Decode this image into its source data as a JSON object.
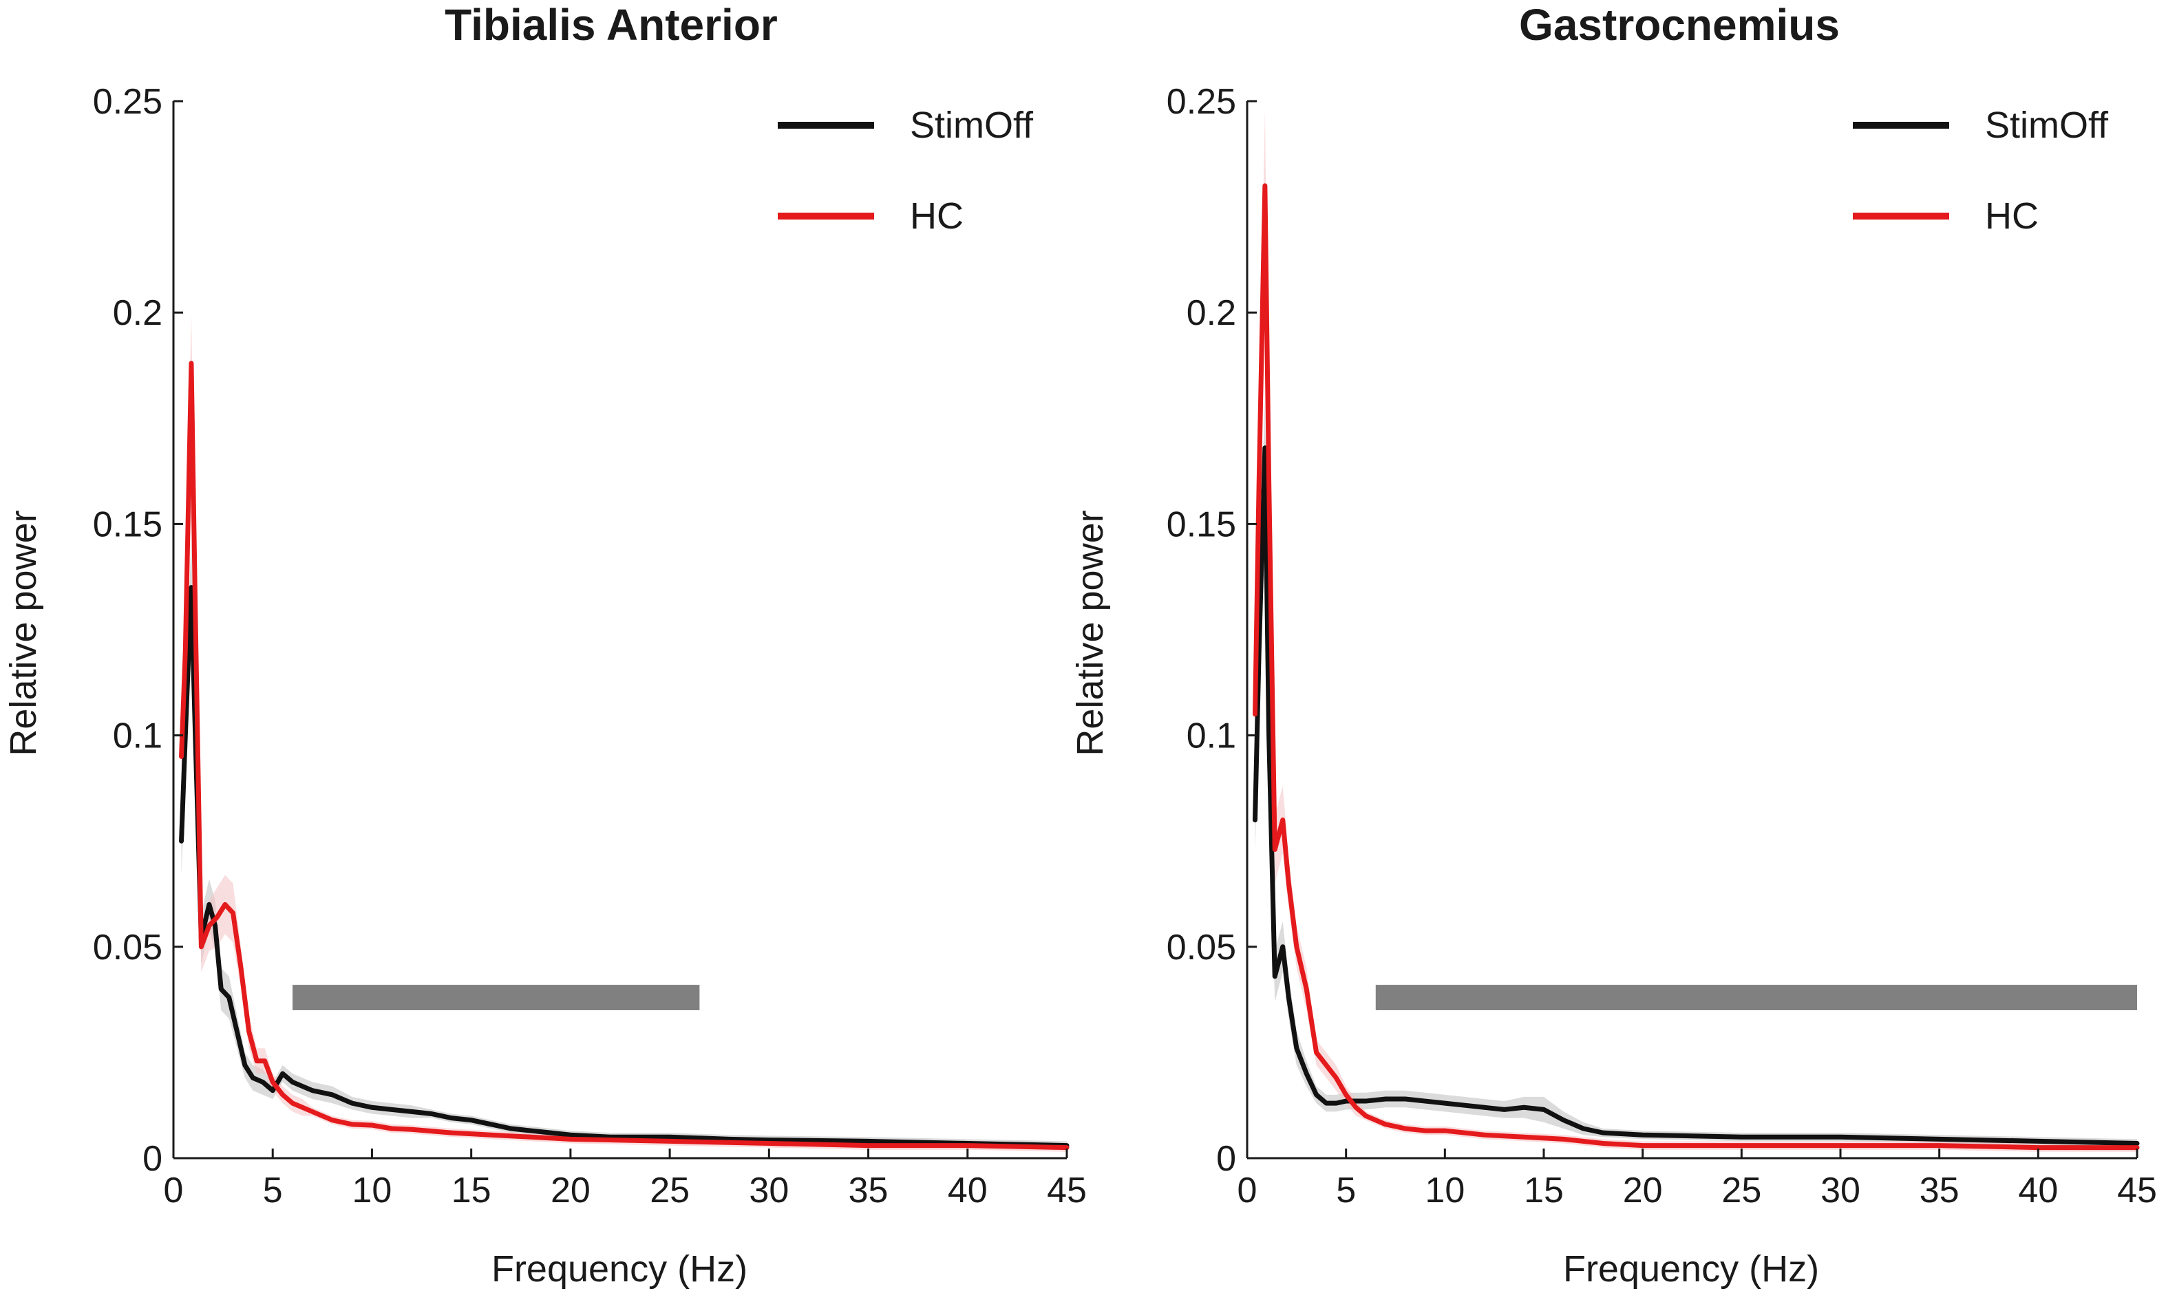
{
  "chart_data": [
    {
      "type": "line",
      "title": "Tibialis Anterior",
      "xlabel": "Frequency (Hz)",
      "ylabel": "Relative power",
      "xlim": [
        0,
        45
      ],
      "ylim": [
        0,
        0.25
      ],
      "xticks": [
        0,
        5,
        10,
        15,
        20,
        25,
        30,
        35,
        40,
        45
      ],
      "yticks": [
        0,
        0.05,
        0.1,
        0.15,
        0.2,
        0.25
      ],
      "xtick_labels": [
        "0",
        "5",
        "10",
        "15",
        "20",
        "25",
        "30",
        "35",
        "40",
        "45"
      ],
      "ytick_labels": [
        "0",
        "0.05",
        "0.1",
        "0.15",
        "0.2",
        "0.25"
      ],
      "legend": {
        "position": "top-right",
        "entries": [
          "StimOff",
          "HC"
        ]
      },
      "significance_bar": {
        "x_start": 6,
        "x_end": 26.5,
        "y_bottom": 0.035,
        "y_top": 0.041,
        "color": "#808080"
      },
      "series": [
        {
          "name": "StimOff",
          "color": "#111111",
          "band_color": "#bdbdbd",
          "points": [
            [
              0.4,
              0.075
            ],
            [
              0.6,
              0.1
            ],
            [
              0.9,
              0.135
            ],
            [
              1.1,
              0.1
            ],
            [
              1.4,
              0.052
            ],
            [
              1.8,
              0.06
            ],
            [
              2.1,
              0.055
            ],
            [
              2.4,
              0.04
            ],
            [
              2.8,
              0.038
            ],
            [
              3.2,
              0.03
            ],
            [
              3.6,
              0.022
            ],
            [
              4,
              0.019
            ],
            [
              4.5,
              0.018
            ],
            [
              5,
              0.016
            ],
            [
              5.5,
              0.02
            ],
            [
              6,
              0.018
            ],
            [
              6.5,
              0.017
            ],
            [
              7,
              0.016
            ],
            [
              8,
              0.015
            ],
            [
              9,
              0.013
            ],
            [
              10,
              0.012
            ],
            [
              11,
              0.0115
            ],
            [
              12,
              0.011
            ],
            [
              13,
              0.0105
            ],
            [
              14,
              0.0095
            ],
            [
              15,
              0.009
            ],
            [
              16,
              0.008
            ],
            [
              17,
              0.007
            ],
            [
              18,
              0.0065
            ],
            [
              19,
              0.006
            ],
            [
              20,
              0.0055
            ],
            [
              22,
              0.005
            ],
            [
              25,
              0.005
            ],
            [
              28,
              0.0045
            ],
            [
              30,
              0.0043
            ],
            [
              35,
              0.004
            ],
            [
              40,
              0.0035
            ],
            [
              45,
              0.003
            ]
          ],
          "band": [
            0.008,
            0.01,
            0.012,
            0.01,
            0.006,
            0.006,
            0.006,
            0.005,
            0.005,
            0.004,
            0.003,
            0.003,
            0.003,
            0.002,
            0.002,
            0.002,
            0.002,
            0.002,
            0.002,
            0.0015,
            0.0015,
            0.0015,
            0.0015,
            0.001,
            0.001,
            0.001,
            0.001,
            0.001,
            0.001,
            0.001,
            0.001,
            0.001,
            0.001,
            0.001,
            0.001,
            0.001,
            0.001,
            0.001
          ]
        },
        {
          "name": "HC",
          "color": "#e41a1c",
          "band_color": "#f4c3c4",
          "points": [
            [
              0.4,
              0.095
            ],
            [
              0.6,
              0.12
            ],
            [
              0.9,
              0.188
            ],
            [
              1.1,
              0.13
            ],
            [
              1.4,
              0.05
            ],
            [
              1.8,
              0.055
            ],
            [
              2.2,
              0.057
            ],
            [
              2.6,
              0.06
            ],
            [
              3,
              0.058
            ],
            [
              3.4,
              0.045
            ],
            [
              3.8,
              0.03
            ],
            [
              4.2,
              0.023
            ],
            [
              4.6,
              0.023
            ],
            [
              5,
              0.018
            ],
            [
              5.5,
              0.015
            ],
            [
              6,
              0.013
            ],
            [
              6.5,
              0.012
            ],
            [
              7,
              0.011
            ],
            [
              8,
              0.009
            ],
            [
              9,
              0.008
            ],
            [
              10,
              0.0078
            ],
            [
              11,
              0.007
            ],
            [
              12,
              0.0068
            ],
            [
              14,
              0.006
            ],
            [
              16,
              0.0055
            ],
            [
              18,
              0.005
            ],
            [
              20,
              0.0045
            ],
            [
              25,
              0.004
            ],
            [
              30,
              0.0035
            ],
            [
              35,
              0.003
            ],
            [
              40,
              0.003
            ],
            [
              45,
              0.0025
            ]
          ],
          "band": [
            0.01,
            0.012,
            0.012,
            0.01,
            0.006,
            0.006,
            0.007,
            0.007,
            0.007,
            0.005,
            0.004,
            0.003,
            0.003,
            0.002,
            0.002,
            0.002,
            0.002,
            0.001,
            0.001,
            0.001,
            0.001,
            0.001,
            0.001,
            0.001,
            0.001,
            0.001,
            0.001,
            0.001,
            0.001,
            0.001,
            0.001,
            0.001
          ]
        }
      ]
    },
    {
      "type": "line",
      "title": "Gastrocnemius",
      "xlabel": "Frequency (Hz)",
      "ylabel": "Relative power",
      "xlim": [
        0,
        45
      ],
      "ylim": [
        0,
        0.25
      ],
      "xticks": [
        0,
        5,
        10,
        15,
        20,
        25,
        30,
        35,
        40,
        45
      ],
      "yticks": [
        0,
        0.05,
        0.1,
        0.15,
        0.2,
        0.25
      ],
      "xtick_labels": [
        "0",
        "5",
        "10",
        "15",
        "20",
        "25",
        "30",
        "35",
        "40",
        "45"
      ],
      "ytick_labels": [
        "0",
        "0.05",
        "0.1",
        "0.15",
        "0.2",
        "0.25"
      ],
      "legend": {
        "position": "top-right",
        "entries": [
          "StimOff",
          "HC"
        ]
      },
      "significance_bar": {
        "x_start": 6.5,
        "x_end": 45,
        "y_bottom": 0.035,
        "y_top": 0.041,
        "color": "#808080"
      },
      "series": [
        {
          "name": "StimOff",
          "color": "#111111",
          "band_color": "#bdbdbd",
          "points": [
            [
              0.4,
              0.08
            ],
            [
              0.6,
              0.12
            ],
            [
              0.9,
              0.168
            ],
            [
              1.1,
              0.1
            ],
            [
              1.4,
              0.043
            ],
            [
              1.8,
              0.05
            ],
            [
              2.1,
              0.038
            ],
            [
              2.5,
              0.026
            ],
            [
              3,
              0.02
            ],
            [
              3.5,
              0.015
            ],
            [
              4,
              0.013
            ],
            [
              4.5,
              0.013
            ],
            [
              5,
              0.0135
            ],
            [
              6,
              0.0135
            ],
            [
              7,
              0.014
            ],
            [
              8,
              0.014
            ],
            [
              9,
              0.0135
            ],
            [
              10,
              0.013
            ],
            [
              11,
              0.0125
            ],
            [
              12,
              0.012
            ],
            [
              13,
              0.0115
            ],
            [
              14,
              0.012
            ],
            [
              15,
              0.0115
            ],
            [
              16,
              0.009
            ],
            [
              17,
              0.007
            ],
            [
              18,
              0.006
            ],
            [
              20,
              0.0055
            ],
            [
              25,
              0.005
            ],
            [
              30,
              0.005
            ],
            [
              35,
              0.0045
            ],
            [
              40,
              0.004
            ],
            [
              45,
              0.0035
            ]
          ],
          "band": [
            0.008,
            0.012,
            0.012,
            0.01,
            0.006,
            0.006,
            0.005,
            0.004,
            0.003,
            0.002,
            0.002,
            0.002,
            0.002,
            0.002,
            0.002,
            0.002,
            0.002,
            0.002,
            0.002,
            0.002,
            0.002,
            0.0025,
            0.003,
            0.002,
            0.0015,
            0.001,
            0.001,
            0.001,
            0.001,
            0.001,
            0.001,
            0.001
          ]
        },
        {
          "name": "HC",
          "color": "#e41a1c",
          "band_color": "#f4c3c4",
          "points": [
            [
              0.4,
              0.105
            ],
            [
              0.6,
              0.16
            ],
            [
              0.9,
              0.23
            ],
            [
              1.1,
              0.16
            ],
            [
              1.4,
              0.073
            ],
            [
              1.8,
              0.08
            ],
            [
              2.1,
              0.065
            ],
            [
              2.5,
              0.05
            ],
            [
              3,
              0.04
            ],
            [
              3.5,
              0.025
            ],
            [
              4,
              0.022
            ],
            [
              4.5,
              0.019
            ],
            [
              5,
              0.015
            ],
            [
              5.5,
              0.012
            ],
            [
              6,
              0.01
            ],
            [
              7,
              0.008
            ],
            [
              8,
              0.007
            ],
            [
              9,
              0.0065
            ],
            [
              10,
              0.0065
            ],
            [
              12,
              0.0055
            ],
            [
              14,
              0.005
            ],
            [
              16,
              0.0045
            ],
            [
              18,
              0.0035
            ],
            [
              20,
              0.003
            ],
            [
              25,
              0.003
            ],
            [
              30,
              0.003
            ],
            [
              35,
              0.003
            ],
            [
              40,
              0.0025
            ],
            [
              45,
              0.0025
            ]
          ],
          "band": [
            0.012,
            0.015,
            0.018,
            0.012,
            0.008,
            0.008,
            0.006,
            0.005,
            0.005,
            0.003,
            0.003,
            0.003,
            0.002,
            0.002,
            0.001,
            0.001,
            0.001,
            0.001,
            0.001,
            0.001,
            0.001,
            0.001,
            0.001,
            0.001,
            0.001,
            0.001,
            0.001,
            0.001,
            0.001
          ]
        }
      ]
    }
  ]
}
